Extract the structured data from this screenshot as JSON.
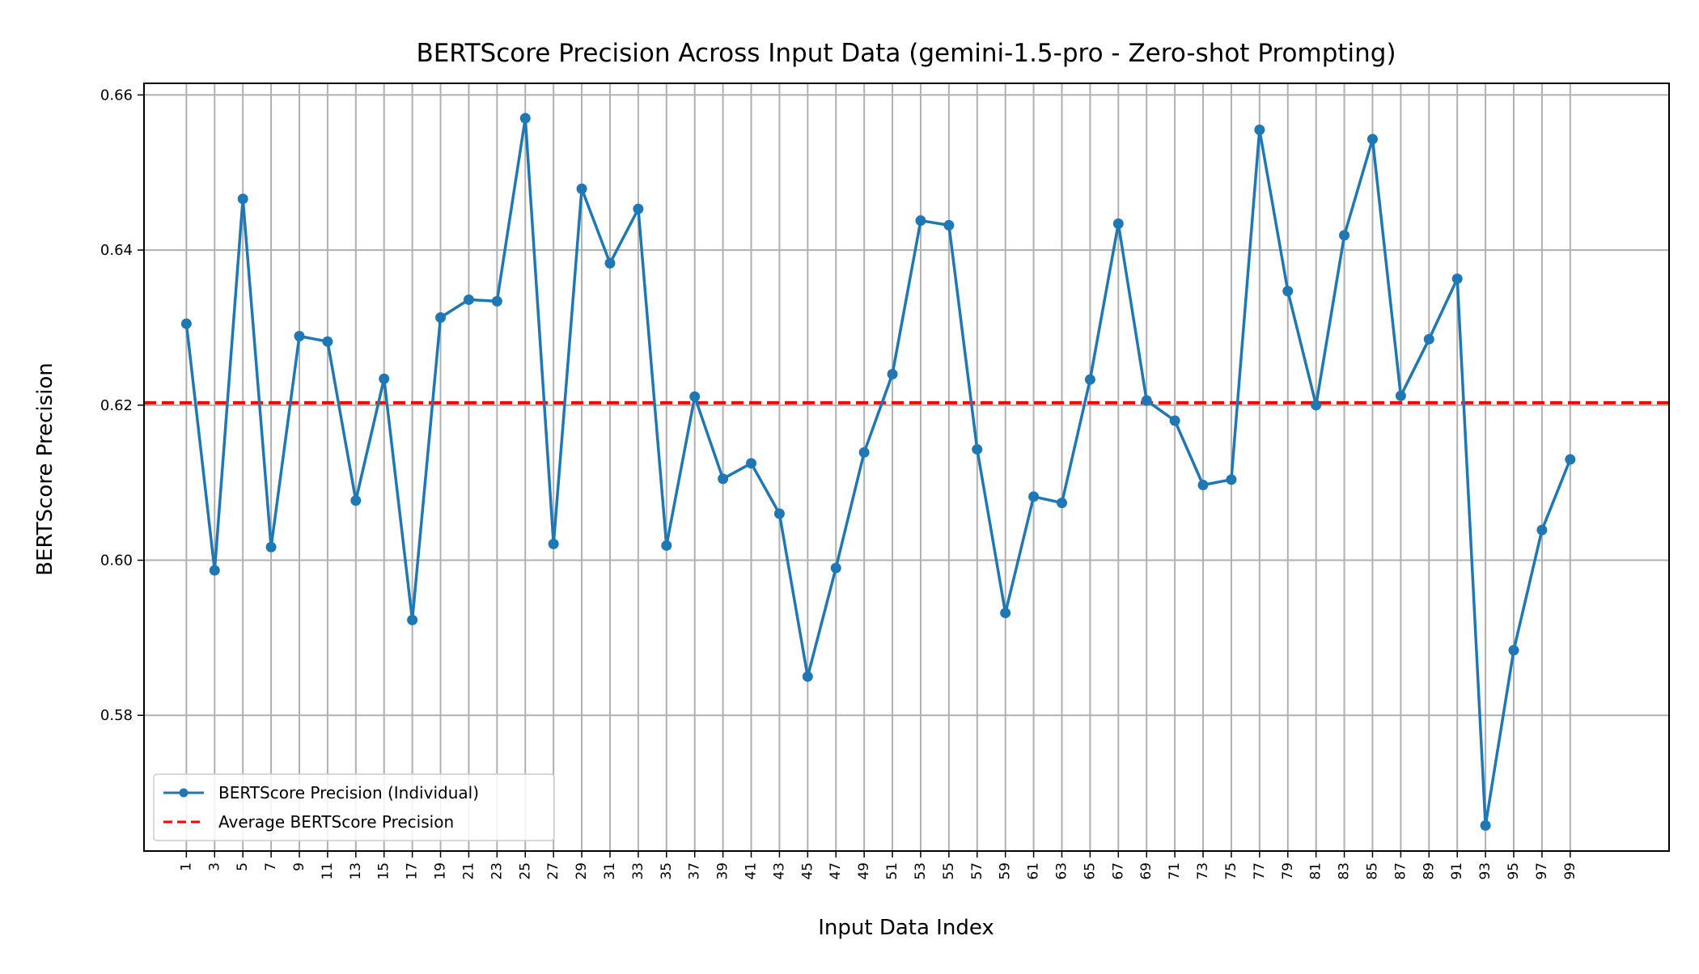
{
  "chart_data": {
    "type": "line",
    "title": "BERTScore Precision Across Input Data (gemini-1.5-pro - Zero-shot Prompting)",
    "xlabel": "Input Data Index",
    "ylabel": "BERTScore Precision",
    "xlim": [
      -2,
      106
    ],
    "ylim": [
      0.5625,
      0.6615
    ],
    "x_ticks": [
      1,
      3,
      5,
      7,
      9,
      11,
      13,
      15,
      17,
      19,
      21,
      23,
      25,
      27,
      29,
      31,
      33,
      35,
      37,
      39,
      41,
      43,
      45,
      47,
      49,
      51,
      53,
      55,
      57,
      59,
      61,
      63,
      65,
      67,
      69,
      71,
      73,
      75,
      77,
      79,
      81,
      83,
      85,
      87,
      89,
      91,
      93,
      95,
      97,
      99
    ],
    "y_ticks": [
      0.58,
      0.6,
      0.62,
      0.64,
      0.66
    ],
    "y_tick_labels": [
      "0.58",
      "0.60",
      "0.62",
      "0.64",
      "0.66"
    ],
    "grid": true,
    "legend_position": "lower-left",
    "series": [
      {
        "name": "BERTScore Precision (Individual)",
        "color": "#1f77b4",
        "style": "line-with-markers",
        "x": [
          1,
          3,
          5,
          7,
          9,
          11,
          13,
          15,
          17,
          19,
          21,
          23,
          25,
          27,
          29,
          31,
          33,
          35,
          37,
          39,
          41,
          43,
          45,
          47,
          49,
          51,
          53,
          55,
          57,
          59,
          61,
          63,
          65,
          67,
          69,
          71,
          73,
          75,
          77,
          79,
          81,
          83,
          85,
          87,
          89,
          91,
          93,
          95,
          97,
          99
        ],
        "values": [
          0.6305,
          0.5987,
          0.6466,
          0.6017,
          0.6289,
          0.6282,
          0.6077,
          0.6234,
          0.5923,
          0.6313,
          0.6336,
          0.6334,
          0.657,
          0.6021,
          0.6479,
          0.6383,
          0.6453,
          0.6019,
          0.6211,
          0.6105,
          0.6125,
          0.606,
          0.585,
          0.599,
          0.6139,
          0.624,
          0.6438,
          0.6432,
          0.6143,
          0.5932,
          0.6082,
          0.6074,
          0.6233,
          0.6434,
          0.6206,
          0.618,
          0.6097,
          0.6104,
          0.6555,
          0.6347,
          0.62,
          0.6419,
          0.6543,
          0.6212,
          0.6285,
          0.6363,
          0.5658,
          0.5884,
          0.6039,
          0.613
        ]
      },
      {
        "name": "Average BERTScore Precision",
        "color": "#ff0000",
        "style": "dashed-horizontal",
        "value": 0.6203
      }
    ]
  }
}
